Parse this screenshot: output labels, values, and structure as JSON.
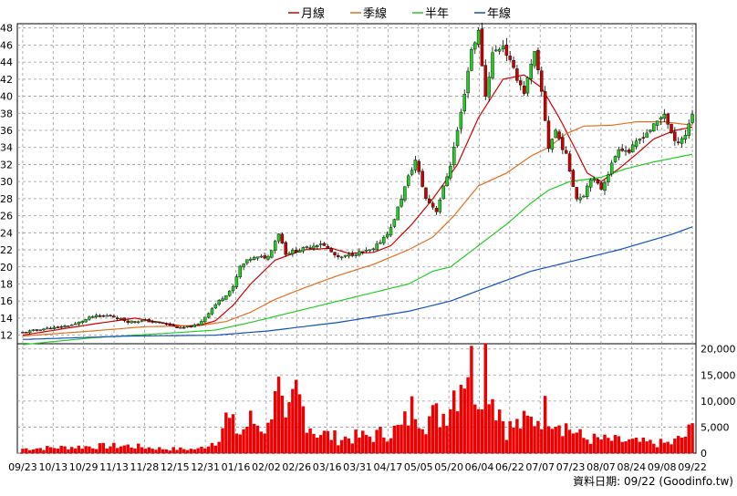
{
  "legend": [
    {
      "label": "月線",
      "color": "#cc0000"
    },
    {
      "label": "季線",
      "color": "#e07020"
    },
    {
      "label": "半年",
      "color": "#22cc22"
    },
    {
      "label": "年線",
      "color": "#1050c0"
    }
  ],
  "footer": {
    "source": "資料日期: 09/22 (Goodinfo.tw)"
  },
  "chart_data": [
    {
      "type": "candlestick",
      "ylim": [
        11,
        48.5
      ],
      "yticks": [
        12,
        14,
        16,
        18,
        20,
        22,
        24,
        26,
        28,
        30,
        32,
        34,
        36,
        38,
        40,
        42,
        44,
        46,
        48
      ],
      "x_labels": [
        "09/23",
        "10/13",
        "10/29",
        "11/13",
        "11/28",
        "12/15",
        "12/31",
        "01/16",
        "02/02",
        "02/26",
        "03/16",
        "03/31",
        "04/17",
        "05/05",
        "05/20",
        "06/04",
        "06/22",
        "07/07",
        "07/23",
        "08/07",
        "08/24",
        "09/08",
        "09/22"
      ],
      "grid": true,
      "up_color": "#22cc22",
      "down_color": "#cc0000",
      "close_anchors": [
        [
          0,
          12.3
        ],
        [
          5,
          12.7
        ],
        [
          10,
          12.9
        ],
        [
          15,
          13.3
        ],
        [
          20,
          14.2
        ],
        [
          25,
          14.3
        ],
        [
          30,
          13.6
        ],
        [
          35,
          13.7
        ],
        [
          40,
          13.4
        ],
        [
          45,
          12.8
        ],
        [
          50,
          13.2
        ],
        [
          55,
          15.6
        ],
        [
          60,
          17.6
        ],
        [
          62,
          20.0
        ],
        [
          65,
          21.0
        ],
        [
          70,
          21.2
        ],
        [
          73,
          24.0
        ],
        [
          75,
          21.6
        ],
        [
          80,
          22.1
        ],
        [
          85,
          22.8
        ],
        [
          90,
          21.0
        ],
        [
          95,
          21.6
        ],
        [
          100,
          22.0
        ],
        [
          105,
          24.5
        ],
        [
          110,
          30.5
        ],
        [
          112,
          32.5
        ],
        [
          115,
          28.0
        ],
        [
          118,
          26.6
        ],
        [
          122,
          32.0
        ],
        [
          125,
          38.0
        ],
        [
          128,
          45.5
        ],
        [
          130,
          47.5
        ],
        [
          132,
          40.0
        ],
        [
          134,
          45.0
        ],
        [
          137,
          46.0
        ],
        [
          140,
          43.0
        ],
        [
          143,
          40.5
        ],
        [
          146,
          45.0
        ],
        [
          148,
          40.5
        ],
        [
          150,
          34.0
        ],
        [
          152,
          36.0
        ],
        [
          155,
          33.0
        ],
        [
          158,
          28.0
        ],
        [
          160,
          28.5
        ],
        [
          162,
          30.5
        ],
        [
          165,
          29.2
        ],
        [
          167,
          31.0
        ],
        [
          170,
          34.0
        ],
        [
          173,
          33.5
        ],
        [
          176,
          35.0
        ],
        [
          180,
          36.5
        ],
        [
          183,
          38.0
        ],
        [
          186,
          34.5
        ],
        [
          189,
          35.5
        ],
        [
          191,
          38.0
        ]
      ],
      "ma_series": [
        {
          "name": "月線",
          "values": [
            [
              0,
              12.0
            ],
            [
              20,
              13.3
            ],
            [
              32,
              14.0
            ],
            [
              45,
              13.1
            ],
            [
              50,
              13.1
            ],
            [
              55,
              13.7
            ],
            [
              60,
              15.5
            ],
            [
              65,
              18.0
            ],
            [
              72,
              20.8
            ],
            [
              80,
              22.0
            ],
            [
              88,
              22.2
            ],
            [
              93,
              21.6
            ],
            [
              100,
              21.7
            ],
            [
              105,
              22.5
            ],
            [
              111,
              25.0
            ],
            [
              117,
              28.0
            ],
            [
              124,
              32.0
            ],
            [
              130,
              37.5
            ],
            [
              137,
              42.0
            ],
            [
              143,
              42.5
            ],
            [
              148,
              41.0
            ],
            [
              153,
              37.5
            ],
            [
              158,
              33.5
            ],
            [
              161,
              31.0
            ],
            [
              165,
              30.0
            ],
            [
              170,
              31.5
            ],
            [
              175,
              33.2
            ],
            [
              180,
              35.0
            ],
            [
              186,
              36.0
            ],
            [
              191,
              36.4
            ]
          ]
        },
        {
          "name": "季線",
          "values": [
            [
              0,
              11.9
            ],
            [
              20,
              12.5
            ],
            [
              35,
              13.0
            ],
            [
              50,
              13.1
            ],
            [
              58,
              13.6
            ],
            [
              65,
              14.7
            ],
            [
              72,
              16.2
            ],
            [
              80,
              17.5
            ],
            [
              90,
              19.0
            ],
            [
              100,
              20.3
            ],
            [
              110,
              22.0
            ],
            [
              117,
              23.5
            ],
            [
              123,
              26.0
            ],
            [
              130,
              29.5
            ],
            [
              138,
              31.0
            ],
            [
              145,
              33.0
            ],
            [
              150,
              34.0
            ],
            [
              155,
              35.6
            ],
            [
              160,
              36.5
            ],
            [
              168,
              36.6
            ],
            [
              175,
              37.0
            ],
            [
              183,
              37.0
            ],
            [
              191,
              36.6
            ]
          ]
        },
        {
          "name": "半年",
          "values": [
            [
              0,
              10.9
            ],
            [
              20,
              11.7
            ],
            [
              40,
              12.2
            ],
            [
              55,
              12.6
            ],
            [
              65,
              13.5
            ],
            [
              80,
              15.0
            ],
            [
              100,
              17.0
            ],
            [
              110,
              18.0
            ],
            [
              117,
              19.5
            ],
            [
              122,
              20.0
            ],
            [
              130,
              22.5
            ],
            [
              138,
              25.0
            ],
            [
              145,
              27.5
            ],
            [
              150,
              29.0
            ],
            [
              156,
              30.0
            ],
            [
              165,
              30.5
            ],
            [
              172,
              31.5
            ],
            [
              180,
              32.3
            ],
            [
              191,
              33.2
            ]
          ]
        },
        {
          "name": "年線",
          "values": [
            [
              0,
              11.5
            ],
            [
              30,
              11.9
            ],
            [
              55,
              12.0
            ],
            [
              70,
              12.5
            ],
            [
              90,
              13.5
            ],
            [
              110,
              14.8
            ],
            [
              122,
              16.0
            ],
            [
              135,
              18.0
            ],
            [
              145,
              19.5
            ],
            [
              155,
              20.5
            ],
            [
              170,
              22.0
            ],
            [
              185,
              23.8
            ],
            [
              191,
              24.7
            ]
          ]
        }
      ]
    },
    {
      "type": "bar",
      "ylim": [
        0,
        21000
      ],
      "yticks": [
        0,
        5000,
        10000,
        15000,
        20000
      ],
      "ytick_labels": [
        "0",
        "5,000",
        "10,000",
        "15,000",
        "20,000"
      ],
      "color": "#ee0000",
      "volume_anchors": [
        [
          0,
          900
        ],
        [
          20,
          1400
        ],
        [
          30,
          1500
        ],
        [
          40,
          900
        ],
        [
          50,
          800
        ],
        [
          55,
          2500
        ],
        [
          58,
          7000
        ],
        [
          62,
          4000
        ],
        [
          65,
          6500
        ],
        [
          70,
          5000
        ],
        [
          72,
          16000
        ],
        [
          75,
          5000
        ],
        [
          78,
          12000
        ],
        [
          83,
          4500
        ],
        [
          90,
          3000
        ],
        [
          100,
          3500
        ],
        [
          108,
          5000
        ],
        [
          112,
          10000
        ],
        [
          115,
          7000
        ],
        [
          120,
          8000
        ],
        [
          125,
          16000
        ],
        [
          127,
          19000
        ],
        [
          130,
          13000
        ],
        [
          132,
          20500
        ],
        [
          134,
          12000
        ],
        [
          136,
          9000
        ],
        [
          138,
          5000
        ],
        [
          145,
          6500
        ],
        [
          150,
          9000
        ],
        [
          155,
          5500
        ],
        [
          160,
          3000
        ],
        [
          170,
          2500
        ],
        [
          180,
          2000
        ],
        [
          185,
          2000
        ],
        [
          189,
          3500
        ],
        [
          191,
          5000
        ]
      ]
    }
  ]
}
